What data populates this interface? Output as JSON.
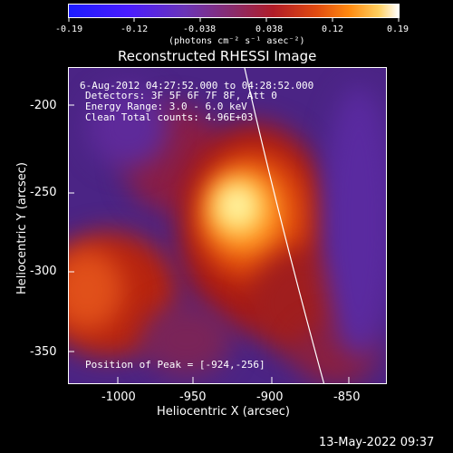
{
  "colorbar": {
    "ticks": [
      "-0.19",
      "-0.12",
      "-0.038",
      "0.038",
      "0.12",
      "0.19"
    ],
    "units_label": "(photons cm⁻² s⁻¹ asec⁻²)"
  },
  "title": "Reconstructed RHESSI Image",
  "info": {
    "line1": "6-Aug-2012 04:27:52.000 to 04:28:52.000",
    "line2": "Detectors: 3F 5F 6F 7F 8F, Att 0",
    "line3": "Energy Range: 3.0 - 6.0 keV",
    "line4": "Clean    Total counts: 4.96E+03"
  },
  "peak": "Position of Peak = [-924,-256]",
  "axes": {
    "xlabel": "Heliocentric X (arcsec)",
    "ylabel": "Heliocentric Y (arcsec)",
    "xticks": [
      "-1000",
      "-950",
      "-900",
      "-850"
    ],
    "yticks": [
      "-200",
      "-250",
      "-300",
      "-350"
    ]
  },
  "timestamp": "13-May-2022 09:37",
  "colors": {
    "background": "#4b2485",
    "limb": "#ffffff",
    "hot": "#ffffc0"
  }
}
